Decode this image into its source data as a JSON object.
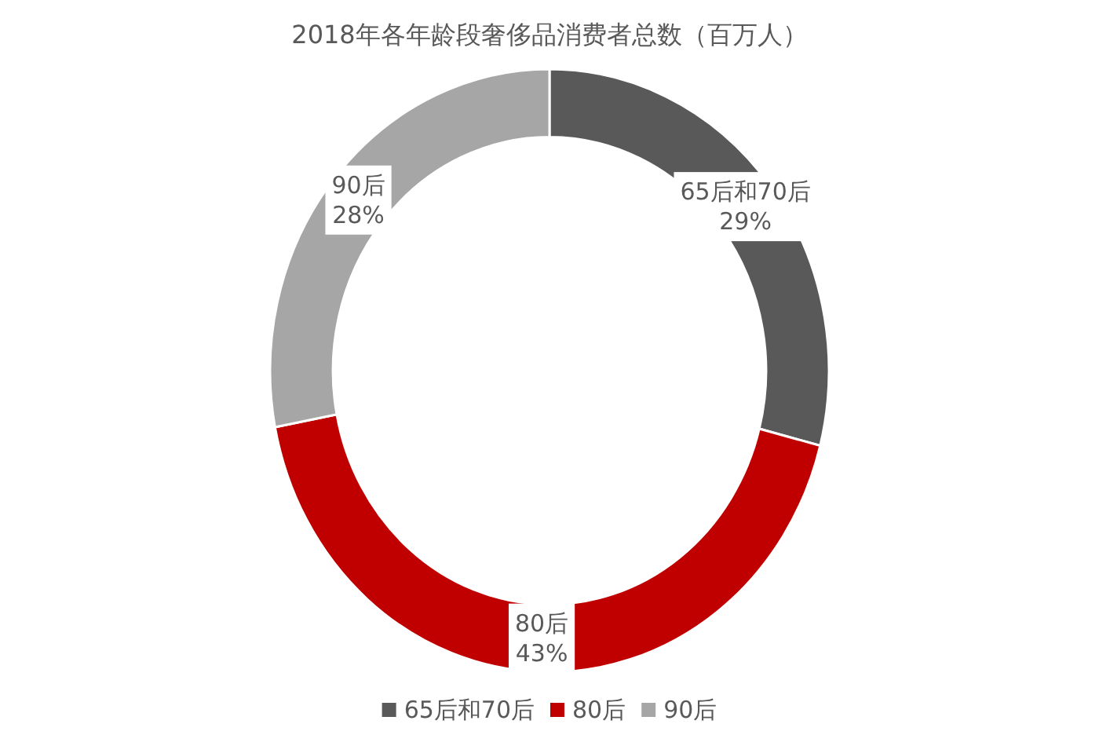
{
  "chart_data": {
    "type": "donut",
    "title": "2018年各年龄段奢侈品消费者总数（百万人）",
    "categories": [
      "65后和70后",
      "80后",
      "90后"
    ],
    "values": [
      29,
      43,
      28
    ],
    "colors": [
      "#595959",
      "#c00000",
      "#a6a6a6"
    ],
    "value_labels": [
      "29%",
      "43%",
      "28%"
    ],
    "legend": "bottom"
  }
}
